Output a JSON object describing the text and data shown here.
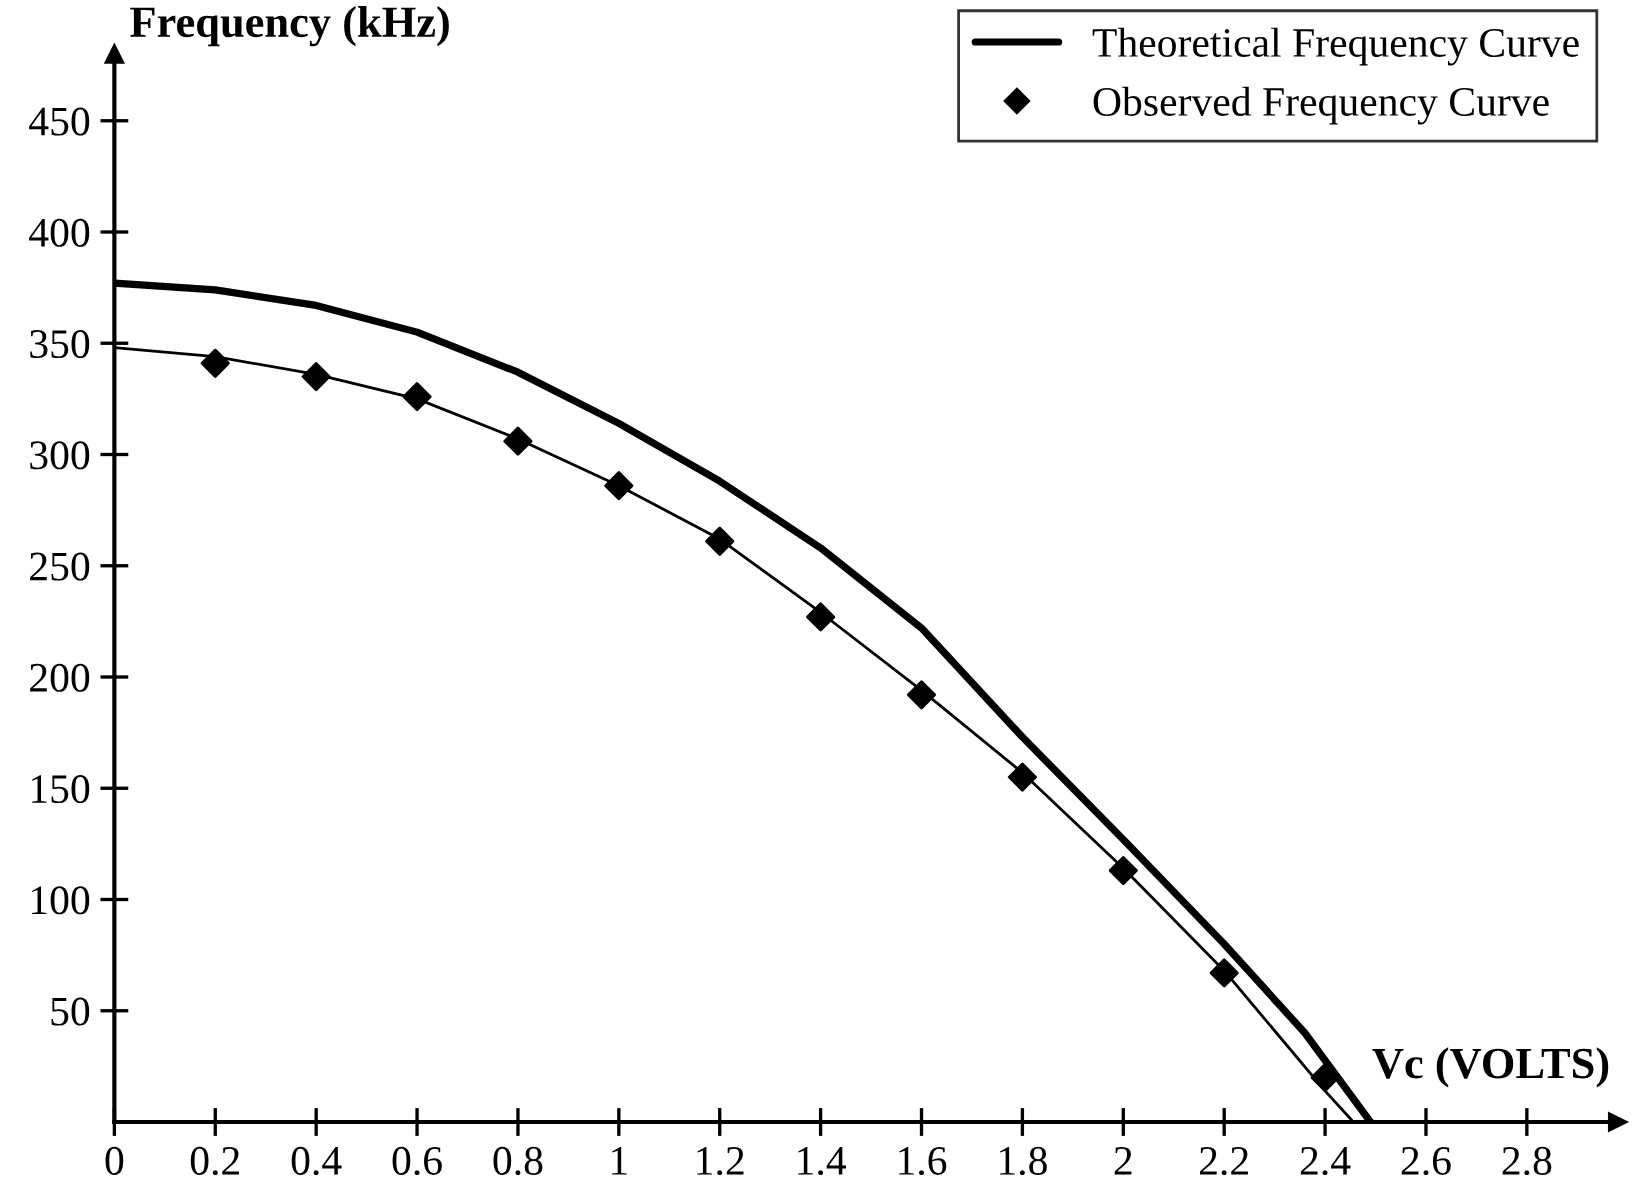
{
  "chart_data": {
    "type": "line",
    "xlabel": "Vc (VOLTS)",
    "ylabel": "Frequency (kHz)",
    "xlim": [
      0,
      2.98
    ],
    "ylim": [
      0,
      480
    ],
    "xticks": [
      0,
      0.2,
      0.4,
      0.6,
      0.8,
      1,
      1.2,
      1.4,
      1.6,
      1.8,
      2,
      2.2,
      2.4,
      2.6,
      2.8
    ],
    "yticks": [
      50,
      100,
      150,
      200,
      250,
      300,
      350,
      400,
      450
    ],
    "grid": false,
    "legend": "top right",
    "series": [
      {
        "name": "Theoretical Frequency Curve",
        "color": "#000000",
        "marker": "none",
        "x": [
          0,
          0.2,
          0.4,
          0.6,
          0.8,
          1,
          1.2,
          1.4,
          1.6,
          1.8,
          2,
          2.2,
          2.36,
          2.49
        ],
        "values": [
          377,
          374,
          367,
          355,
          337,
          314,
          288,
          258,
          222,
          173,
          127,
          80,
          40,
          0
        ]
      },
      {
        "type": "scatter",
        "name": "Observed Frequency Curve",
        "color": "#000000",
        "marker": "diamond",
        "x": [
          0.2,
          0.4,
          0.6,
          0.8,
          1,
          1.2,
          1.4,
          1.6,
          1.8,
          2,
          2.2,
          2.4
        ],
        "values": [
          341,
          335,
          326,
          306,
          286,
          261,
          227,
          192,
          155,
          113,
          67,
          20
        ]
      },
      {
        "color": "#000000",
        "marker": "none",
        "x": [
          0,
          0.2,
          0.4,
          0.6,
          0.8,
          1,
          1.2,
          1.4,
          1.6,
          1.8,
          2,
          2.2,
          2.4,
          2.456
        ],
        "values": [
          348,
          344,
          336,
          325,
          307,
          286,
          262,
          229,
          194,
          157,
          114,
          68,
          14,
          0
        ]
      }
    ]
  }
}
